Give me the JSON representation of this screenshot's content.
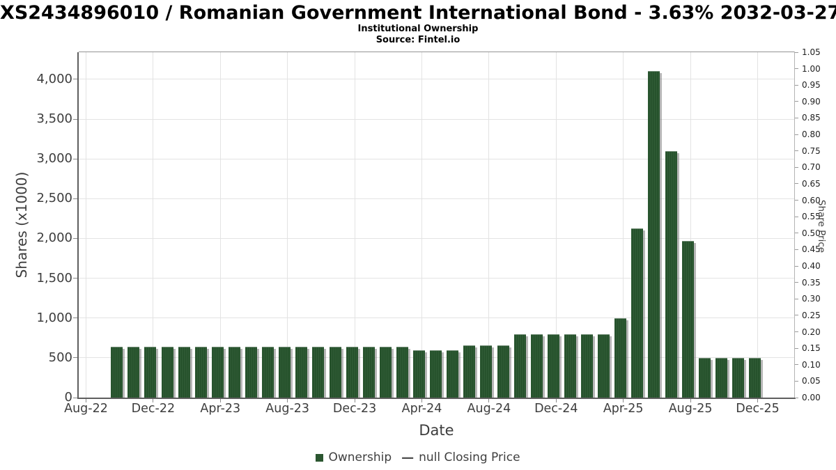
{
  "header": {
    "title": "XS2434896010 / Romanian Government International Bond - 3.63% 2032-03-27",
    "subtitle": "Institutional Ownership",
    "source": "Source: Fintel.io"
  },
  "chart_data": {
    "type": "bar",
    "title": "Institutional Ownership",
    "xlabel": "Date",
    "ylabel_left": "Shares (x1000)",
    "ylabel_right": "Share Price",
    "grid": true,
    "legend_position": "bottom",
    "categories": [
      "Oct-22",
      "Nov-22",
      "Dec-22",
      "Jan-23",
      "Feb-23",
      "Mar-23",
      "Apr-23",
      "May-23",
      "Jun-23",
      "Jul-23",
      "Aug-23",
      "Sep-23",
      "Oct-23",
      "Nov-23",
      "Dec-23",
      "Jan-24",
      "Feb-24",
      "Mar-24",
      "Apr-24",
      "May-24",
      "Jun-24",
      "Jul-24",
      "Aug-24",
      "Sep-24",
      "Oct-24",
      "Nov-24",
      "Dec-24",
      "Jan-25",
      "Feb-25",
      "Mar-25",
      "Apr-25",
      "May-25",
      "Jun-25",
      "Jul-25",
      "Aug-25",
      "Sep-25",
      "Oct-25",
      "Nov-25",
      "Dec-25"
    ],
    "series": [
      {
        "name": "Ownership",
        "color": "#2b5630",
        "values": [
          640,
          640,
          640,
          640,
          640,
          640,
          640,
          640,
          640,
          640,
          640,
          640,
          640,
          640,
          640,
          640,
          640,
          640,
          595,
          595,
          595,
          655,
          655,
          655,
          800,
          800,
          800,
          800,
          800,
          800,
          1000,
          2130,
          4100,
          3100,
          1970,
          500,
          500,
          500,
          500
        ]
      },
      {
        "name": "null Closing Price",
        "type": "line",
        "color": "#4d4d4d",
        "values": []
      }
    ],
    "x_tick_labels": [
      "Aug-22",
      "Dec-22",
      "Apr-23",
      "Aug-23",
      "Dec-23",
      "Apr-24",
      "Aug-24",
      "Dec-24",
      "Apr-25",
      "Aug-25",
      "Dec-25"
    ],
    "left_axis": {
      "ticks": [
        "0",
        "500",
        "1,000",
        "1,500",
        "2,000",
        "2,500",
        "3,000",
        "3,500",
        "4,000"
      ],
      "tick_values": [
        0,
        500,
        1000,
        1500,
        2000,
        2500,
        3000,
        3500,
        4000
      ],
      "ylim": [
        0,
        4340
      ]
    },
    "right_axis": {
      "ticks": [
        "0.00",
        "0.05",
        "0.10",
        "0.15",
        "0.20",
        "0.25",
        "0.30",
        "0.35",
        "0.40",
        "0.45",
        "0.50",
        "0.55",
        "0.60",
        "0.65",
        "0.70",
        "0.75",
        "0.80",
        "0.85",
        "0.90",
        "0.95",
        "1.00",
        "1.05"
      ],
      "ylim": [
        0,
        1.05
      ]
    }
  },
  "legend": {
    "dash": "—",
    "items": [
      {
        "label": "Ownership",
        "marker": "square",
        "color": "#2b5630"
      },
      {
        "label": "null Closing Price",
        "marker": "dash",
        "color": "#4d4d4d"
      }
    ]
  }
}
